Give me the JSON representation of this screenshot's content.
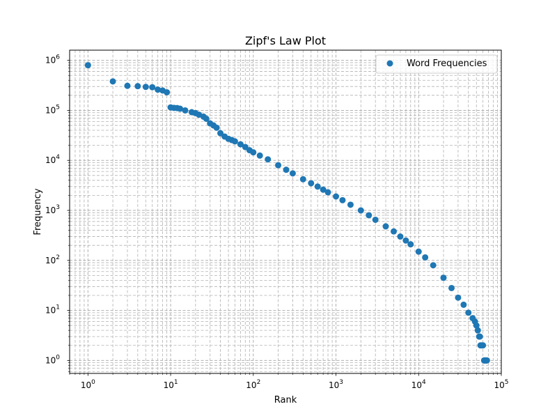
{
  "chart_data": {
    "type": "scatter",
    "title": "Zipf's Law Plot",
    "xlabel": "Rank",
    "ylabel": "Frequency",
    "xscale": "log",
    "yscale": "log",
    "xlim": [
      0.6,
      100000
    ],
    "ylim": [
      0.55,
      1600000
    ],
    "grid": "both (major and minor), dashed",
    "legend_position": "top-right",
    "colors": {
      "marker": "#1f77b4",
      "grid": "#b0b0b0"
    },
    "xticks": [
      {
        "value": 1,
        "base": "10",
        "exp": "0"
      },
      {
        "value": 10,
        "base": "10",
        "exp": "1"
      },
      {
        "value": 100,
        "base": "10",
        "exp": "2"
      },
      {
        "value": 1000,
        "base": "10",
        "exp": "3"
      },
      {
        "value": 10000,
        "base": "10",
        "exp": "4"
      },
      {
        "value": 100000,
        "base": "10",
        "exp": "5"
      }
    ],
    "yticks": [
      {
        "value": 1,
        "base": "10",
        "exp": "0"
      },
      {
        "value": 10,
        "base": "10",
        "exp": "1"
      },
      {
        "value": 100,
        "base": "10",
        "exp": "2"
      },
      {
        "value": 1000,
        "base": "10",
        "exp": "3"
      },
      {
        "value": 10000,
        "base": "10",
        "exp": "4"
      },
      {
        "value": 100000,
        "base": "10",
        "exp": "5"
      },
      {
        "value": 1000000,
        "base": "10",
        "exp": "6"
      }
    ],
    "series": [
      {
        "name": "Word Frequencies",
        "points": [
          [
            1,
            800000
          ],
          [
            2,
            380000
          ],
          [
            3,
            310000
          ],
          [
            4,
            305000
          ],
          [
            5,
            295000
          ],
          [
            6,
            290000
          ],
          [
            7,
            260000
          ],
          [
            8,
            250000
          ],
          [
            9,
            230000
          ],
          [
            10,
            115000
          ],
          [
            11,
            112000
          ],
          [
            12,
            111000
          ],
          [
            13,
            108000
          ],
          [
            15,
            100000
          ],
          [
            18,
            92000
          ],
          [
            20,
            88000
          ],
          [
            22,
            82000
          ],
          [
            25,
            75000
          ],
          [
            27,
            68000
          ],
          [
            30,
            55000
          ],
          [
            33,
            50000
          ],
          [
            36,
            45000
          ],
          [
            40,
            35000
          ],
          [
            45,
            30000
          ],
          [
            50,
            27000
          ],
          [
            55,
            25500
          ],
          [
            60,
            24000
          ],
          [
            70,
            21000
          ],
          [
            80,
            18500
          ],
          [
            90,
            16000
          ],
          [
            100,
            14500
          ],
          [
            120,
            12500
          ],
          [
            150,
            10500
          ],
          [
            200,
            8000
          ],
          [
            250,
            6500
          ],
          [
            300,
            5500
          ],
          [
            400,
            4200
          ],
          [
            500,
            3500
          ],
          [
            600,
            3000
          ],
          [
            700,
            2600
          ],
          [
            800,
            2300
          ],
          [
            1000,
            1900
          ],
          [
            1200,
            1600
          ],
          [
            1500,
            1300
          ],
          [
            2000,
            1000
          ],
          [
            2500,
            800
          ],
          [
            3000,
            650
          ],
          [
            4000,
            480
          ],
          [
            5000,
            380
          ],
          [
            6000,
            300
          ],
          [
            7000,
            250
          ],
          [
            8000,
            210
          ],
          [
            10000,
            150
          ],
          [
            12000,
            115
          ],
          [
            15000,
            80
          ],
          [
            20000,
            45
          ],
          [
            25000,
            28
          ],
          [
            30000,
            18
          ],
          [
            35000,
            13
          ],
          [
            40000,
            9
          ],
          [
            45000,
            7
          ],
          [
            48000,
            6
          ],
          [
            50000,
            5
          ],
          [
            52000,
            4
          ],
          [
            54000,
            3
          ],
          [
            55000,
            3
          ],
          [
            56000,
            2
          ],
          [
            58000,
            2
          ],
          [
            60000,
            2
          ],
          [
            62000,
            1
          ],
          [
            63000,
            1
          ],
          [
            64000,
            1
          ],
          [
            65000,
            1
          ],
          [
            66000,
            1
          ],
          [
            67000,
            1
          ]
        ]
      }
    ]
  }
}
